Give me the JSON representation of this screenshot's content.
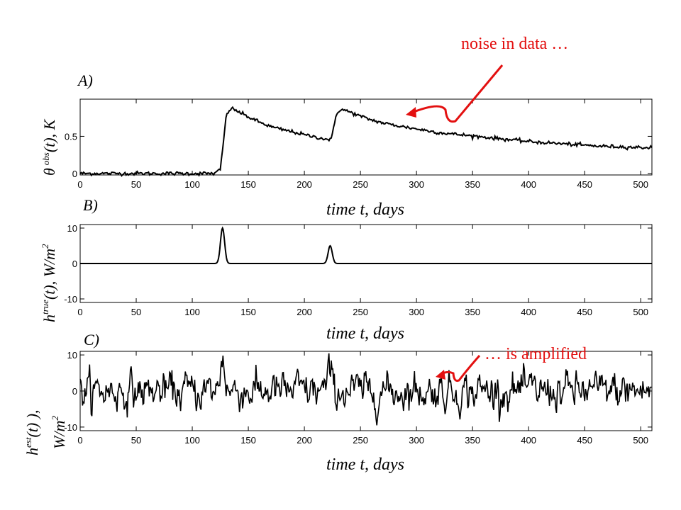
{
  "colors": {
    "line": "#000000",
    "annotation": "#e31010",
    "axes": "#000000"
  },
  "chart_data": [
    {
      "type": "line",
      "panel_label": "A)",
      "ylabel": {
        "main": "θ",
        "sup": "obs",
        "tail": "(t), K"
      },
      "xlabel": "time  t, days",
      "xlim": [
        0,
        510
      ],
      "ylim": [
        -0.02,
        1.0
      ],
      "xticks": [
        0,
        50,
        100,
        150,
        200,
        250,
        300,
        350,
        400,
        450,
        500
      ],
      "yticks": [
        0,
        0.5
      ],
      "ytick_labels": [
        "0",
        "0.5"
      ],
      "series": [
        {
          "x": [
            0,
            120,
            125,
            128,
            130,
            133,
            136,
            140,
            150,
            160,
            170,
            180,
            190,
            200,
            210,
            220,
            224,
            226,
            228,
            230,
            233,
            236,
            240,
            250,
            260,
            270,
            280,
            300,
            320,
            340,
            360,
            380,
            400,
            420,
            440,
            460,
            480,
            500,
            510
          ],
          "y": [
            0,
            0,
            0.05,
            0.45,
            0.75,
            0.86,
            0.87,
            0.84,
            0.76,
            0.69,
            0.63,
            0.59,
            0.56,
            0.52,
            0.49,
            0.46,
            0.46,
            0.6,
            0.76,
            0.84,
            0.86,
            0.85,
            0.83,
            0.77,
            0.72,
            0.68,
            0.65,
            0.6,
            0.55,
            0.52,
            0.49,
            0.46,
            0.43,
            0.41,
            0.39,
            0.37,
            0.36,
            0.35,
            0.35
          ],
          "noise": 0.012
        }
      ],
      "annotation": "noise in data …"
    },
    {
      "type": "line",
      "panel_label": "B)",
      "ylabel": {
        "main": "h",
        "sup": "true",
        "tail": "(t),  W/m",
        "sup2": "2"
      },
      "xlabel": "time  t, days",
      "xlim": [
        0,
        510
      ],
      "ylim": [
        -11,
        11
      ],
      "xticks": [
        0,
        50,
        100,
        150,
        200,
        250,
        300,
        350,
        400,
        450,
        500
      ],
      "yticks": [
        -10,
        0,
        10
      ],
      "ytick_labels": [
        "-10",
        "0",
        "10"
      ],
      "peaks": [
        {
          "center": 127,
          "height": 10,
          "width": 2.6
        },
        {
          "center": 223,
          "height": 5,
          "width": 2.6
        }
      ]
    },
    {
      "type": "line",
      "panel_label": "C)",
      "ylabel": {
        "main": "h",
        "sup": "est",
        "tail": "(t) ),",
        "line2": "W/m",
        "sup2": "2"
      },
      "xlabel": "time  t, days",
      "xlim": [
        0,
        510
      ],
      "ylim": [
        -11,
        11
      ],
      "xticks": [
        0,
        50,
        100,
        150,
        200,
        250,
        300,
        350,
        400,
        450,
        500
      ],
      "yticks": [
        -10,
        0,
        10
      ],
      "ytick_labels": [
        "-10",
        "0",
        "10"
      ],
      "noise_amplitude": 2.2,
      "annotation": "… is amplified"
    }
  ]
}
